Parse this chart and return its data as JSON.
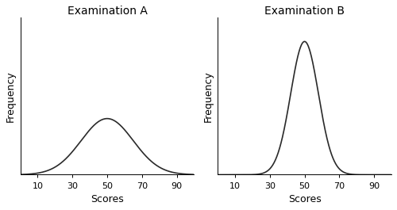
{
  "title_A": "Examination A",
  "title_B": "Examination B",
  "xlabel": "Scores",
  "ylabel": "Frequency",
  "mean_A": 50,
  "std_A": 15,
  "mean_B": 50,
  "std_B": 8,
  "x_ticks": [
    10,
    30,
    50,
    70,
    90
  ],
  "x_min": 0,
  "x_max": 100,
  "line_color": "#2a2a2a",
  "line_width": 1.2,
  "background_color": "#ffffff",
  "title_fontsize": 10,
  "label_fontsize": 9,
  "tick_fontsize": 8,
  "ylim_A_factor": 2.8,
  "ylim_B_factor": 1.18
}
